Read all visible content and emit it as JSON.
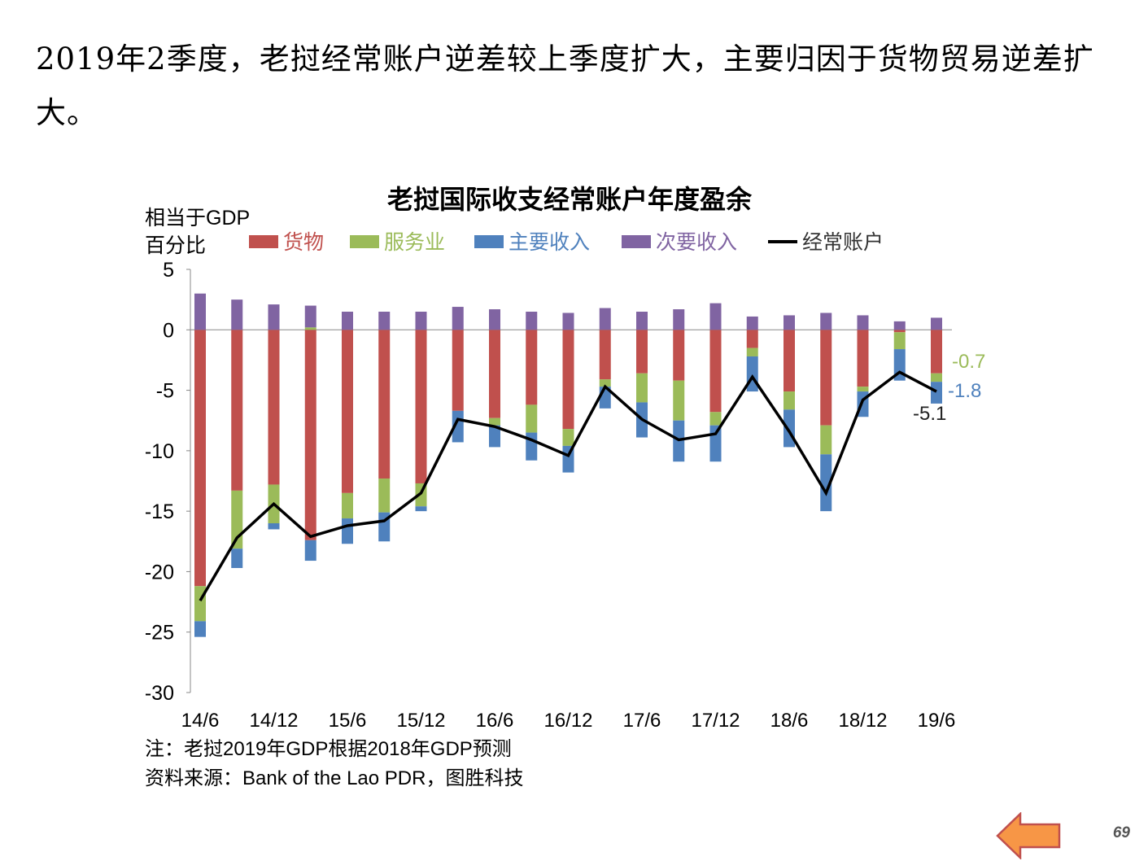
{
  "headline": "2019年2季度，老挝经常账户逆差较上季度扩大，主要归因于货物贸易逆差扩大。",
  "notes": {
    "note": "注：老挝2019年GDP根据2018年GDP预测",
    "source": "资料来源：Bank of the Lao PDR，图胜科技"
  },
  "page_number": "69",
  "colors": {
    "goods": "#c0504d",
    "services": "#9bbb59",
    "primary_income": "#4f81bd",
    "secondary_income": "#8064a2",
    "current_account": "#000000",
    "arrow_fill": "#f79646",
    "arrow_stroke": "#c0504d"
  },
  "chart_data": {
    "type": "bar",
    "stacked": true,
    "title": "老挝国际收支经常账户年度盈余",
    "ylabel": [
      "相当于GDP",
      "百分比"
    ],
    "ylim": [
      -30,
      5
    ],
    "yticks": [
      5,
      0,
      -5,
      -10,
      -15,
      -20,
      -25,
      -30
    ],
    "grid": false,
    "legend_position": "top",
    "categories": [
      "14/6",
      "14/9",
      "14/12",
      "15/3",
      "15/6",
      "15/9",
      "15/12",
      "16/3",
      "16/6",
      "16/9",
      "16/12",
      "17/3",
      "17/6",
      "17/9",
      "17/12",
      "18/3",
      "18/6",
      "18/9",
      "18/12",
      "19/3",
      "19/6"
    ],
    "x_tick_labels": [
      "14/6",
      "14/12",
      "15/6",
      "15/12",
      "16/6",
      "16/12",
      "17/6",
      "17/12",
      "18/6",
      "18/12",
      "19/6"
    ],
    "series": [
      {
        "name": "货物",
        "type": "bar",
        "color_key": "goods",
        "values": [
          -21.2,
          -13.3,
          -12.8,
          -17.4,
          -13.5,
          -12.3,
          -12.7,
          -6.7,
          -7.3,
          -6.2,
          -8.2,
          -4.1,
          -3.6,
          -4.2,
          -6.8,
          -1.5,
          -5.1,
          -7.9,
          -4.7,
          -0.2,
          -3.6
        ]
      },
      {
        "name": "服务业",
        "type": "bar",
        "color_key": "services",
        "values": [
          -2.9,
          -4.8,
          -3.2,
          0.2,
          -2.1,
          -2.8,
          -1.9,
          0.0,
          -0.6,
          -2.3,
          -1.4,
          -0.6,
          -2.4,
          -3.3,
          -1.1,
          -0.7,
          -1.5,
          -2.4,
          -0.4,
          -1.4,
          -0.7
        ]
      },
      {
        "name": "主要收入",
        "type": "bar",
        "color_key": "primary_income",
        "values": [
          -1.3,
          -1.6,
          -0.5,
          -1.7,
          -2.1,
          -2.4,
          -0.4,
          -2.6,
          -1.8,
          -2.3,
          -2.2,
          -1.8,
          -2.9,
          -3.4,
          -3.0,
          -2.9,
          -3.1,
          -4.7,
          -2.1,
          -2.6,
          -1.8
        ]
      },
      {
        "name": "次要收入",
        "type": "bar",
        "color_key": "secondary_income",
        "values": [
          3.0,
          2.5,
          2.1,
          1.8,
          1.5,
          1.5,
          1.5,
          1.9,
          1.7,
          1.5,
          1.4,
          1.8,
          1.5,
          1.7,
          2.2,
          1.1,
          1.2,
          1.4,
          1.2,
          0.7,
          1.0
        ]
      },
      {
        "name": "经常账户",
        "type": "line",
        "color_key": "current_account",
        "values": [
          -22.4,
          -17.2,
          -14.4,
          -17.1,
          -16.2,
          -15.8,
          -13.5,
          -7.4,
          -8.0,
          -9.1,
          -10.4,
          -4.7,
          -7.4,
          -9.1,
          -8.6,
          -3.9,
          -8.4,
          -13.5,
          -5.8,
          -3.5,
          -5.1
        ]
      }
    ],
    "annotations": [
      {
        "text": "-0.7",
        "series": "服务业",
        "color_key": "services"
      },
      {
        "text": "-1.8",
        "series": "主要收入",
        "color_key": "primary_income"
      },
      {
        "text": "-5.1",
        "series": "经常账户",
        "color_key": "current_account"
      }
    ]
  }
}
